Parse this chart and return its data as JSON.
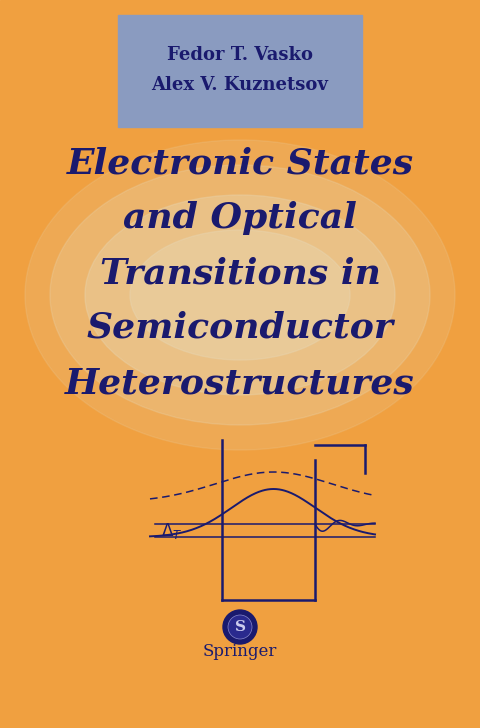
{
  "bg_color": "#F0A040",
  "header_box_color": "#8A9BC0",
  "author_line1": "Fedor T. Vasko",
  "author_line2": "Alex V. Kuznetsov",
  "title_lines": [
    "Electronic States",
    "and Optical",
    "Transitions in",
    "Semiconductor",
    "Heterostructures"
  ],
  "title_color": "#1a1a6e",
  "author_color": "#1a1a6e",
  "diagram_color": "#1a1a6e",
  "springer_text": "Springer",
  "springer_color": "#1a1a6e",
  "glow_color": "#E8D5B0",
  "fig_width": 4.8,
  "fig_height": 7.28,
  "dpi": 100
}
